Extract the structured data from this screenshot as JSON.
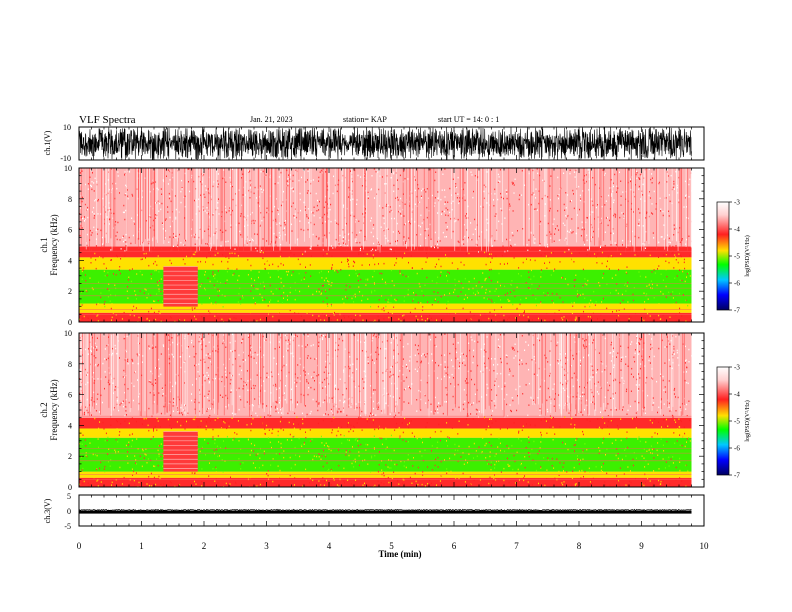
{
  "header": {
    "title": "VLF Spectra",
    "date": "Jan. 21, 2023",
    "station": "station= KAP",
    "start_ut": "start  UT =  14: 0  : 1"
  },
  "colors": {
    "spec_red": "#ff2a2a",
    "spec_pink": "#ffb4b4",
    "spec_yellow": "#ffe100",
    "spec_green": "#3cf000",
    "colorbar_stops": [
      "#ffffff",
      "#ffd0d0",
      "#ff2020",
      "#ffe000",
      "#00ff00",
      "#00c8ff",
      "#0000ff",
      "#000060"
    ]
  },
  "chart_data": [
    {
      "type": "line",
      "name": "ch1-waveform",
      "ylabel": "ch.1(V)",
      "ylim": [
        -10,
        10
      ],
      "yticks": [
        "10",
        "-10"
      ],
      "xlim": [
        0,
        10
      ],
      "data_end_min": 9.8,
      "description_values": {
        "amplitude_range_V": [
          -10,
          10
        ]
      }
    },
    {
      "type": "heatmap",
      "name": "ch1-spectrogram",
      "ylabel": "ch.1\nFrequency  (kHz)",
      "ylim": [
        0,
        10
      ],
      "yticks": [
        "0",
        "2",
        "4",
        "6",
        "8",
        "10"
      ],
      "xlim": [
        0,
        10
      ],
      "data_end_min": 9.8,
      "bands_khz": [
        {
          "from": 0,
          "to": 0.6,
          "level": "red"
        },
        {
          "from": 0.6,
          "to": 1.2,
          "level": "yellow"
        },
        {
          "from": 1.2,
          "to": 3.4,
          "level": "green"
        },
        {
          "from": 3.4,
          "to": 4.2,
          "level": "yellow"
        },
        {
          "from": 4.2,
          "to": 4.9,
          "level": "red"
        },
        {
          "from": 4.9,
          "to": 10,
          "level": "pink"
        }
      ],
      "quiet_interval_min": [
        1.35,
        1.9
      ],
      "colorbar": {
        "label": "log(PSD)(V²/Hz)",
        "ticks": [
          "-3",
          "-4",
          "-5",
          "-6",
          "-7"
        ],
        "range": [
          -7,
          -3
        ]
      }
    },
    {
      "type": "heatmap",
      "name": "ch2-spectrogram",
      "ylabel": "ch.2\nFrequency  (kHz)",
      "ylim": [
        0,
        10
      ],
      "yticks": [
        "0",
        "2",
        "4",
        "6",
        "8",
        "10"
      ],
      "xlim": [
        0,
        10
      ],
      "data_end_min": 9.8,
      "bands_khz": [
        {
          "from": 0,
          "to": 0.6,
          "level": "red"
        },
        {
          "from": 0.6,
          "to": 1.0,
          "level": "yellow"
        },
        {
          "from": 1.0,
          "to": 3.2,
          "level": "green"
        },
        {
          "from": 3.2,
          "to": 3.8,
          "level": "yellow"
        },
        {
          "from": 3.8,
          "to": 4.5,
          "level": "red"
        },
        {
          "from": 4.5,
          "to": 10,
          "level": "pink"
        }
      ],
      "quiet_interval_min": [
        1.35,
        1.9
      ],
      "colorbar": {
        "label": "log(PSD)(V²/Hz)",
        "ticks": [
          "-3",
          "-4",
          "-5",
          "-6",
          "-7"
        ],
        "range": [
          -7,
          -3
        ]
      }
    },
    {
      "type": "line",
      "name": "ch3-waveform",
      "ylabel": "ch.3(V)",
      "ylim": [
        -5,
        5
      ],
      "yticks": [
        "5",
        "0",
        "-5"
      ],
      "xlim": [
        0,
        10
      ],
      "data_end_min": 9.8,
      "description_values": {
        "amplitude_range_V": [
          -1,
          0
        ]
      }
    }
  ],
  "xaxis": {
    "label": "Time  (min)",
    "ticks": [
      "0",
      "1",
      "2",
      "3",
      "4",
      "5",
      "6",
      "7",
      "8",
      "9",
      "10"
    ],
    "range": [
      0,
      10
    ]
  }
}
